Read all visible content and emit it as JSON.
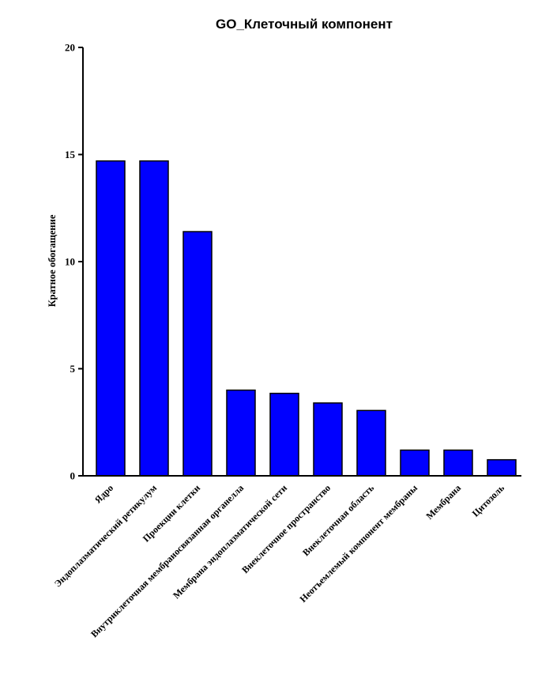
{
  "chart_data": {
    "type": "bar",
    "title": "GO_Клеточный компонент",
    "xlabel": "",
    "ylabel": "Кратное обогащение",
    "ylim": [
      0,
      20
    ],
    "yticks": [
      0,
      5,
      10,
      15,
      20
    ],
    "categories": [
      "Ядро",
      "Эндоплазматический ретикулум",
      "Проекции клетки",
      "Внутриклеточная мембраносвязанная органелла",
      "Мембрана эндоплазматической сети",
      "Внеклеточное пространство",
      "Внеклеточная область",
      "Неотъемлемый компонент мембраны",
      "Мембрана",
      "Цитозоль"
    ],
    "values": [
      14.7,
      14.7,
      11.4,
      4.0,
      3.85,
      3.4,
      3.05,
      1.2,
      1.2,
      0.75
    ],
    "bar_color": "#0000ff",
    "grid": false,
    "legend": "none"
  }
}
